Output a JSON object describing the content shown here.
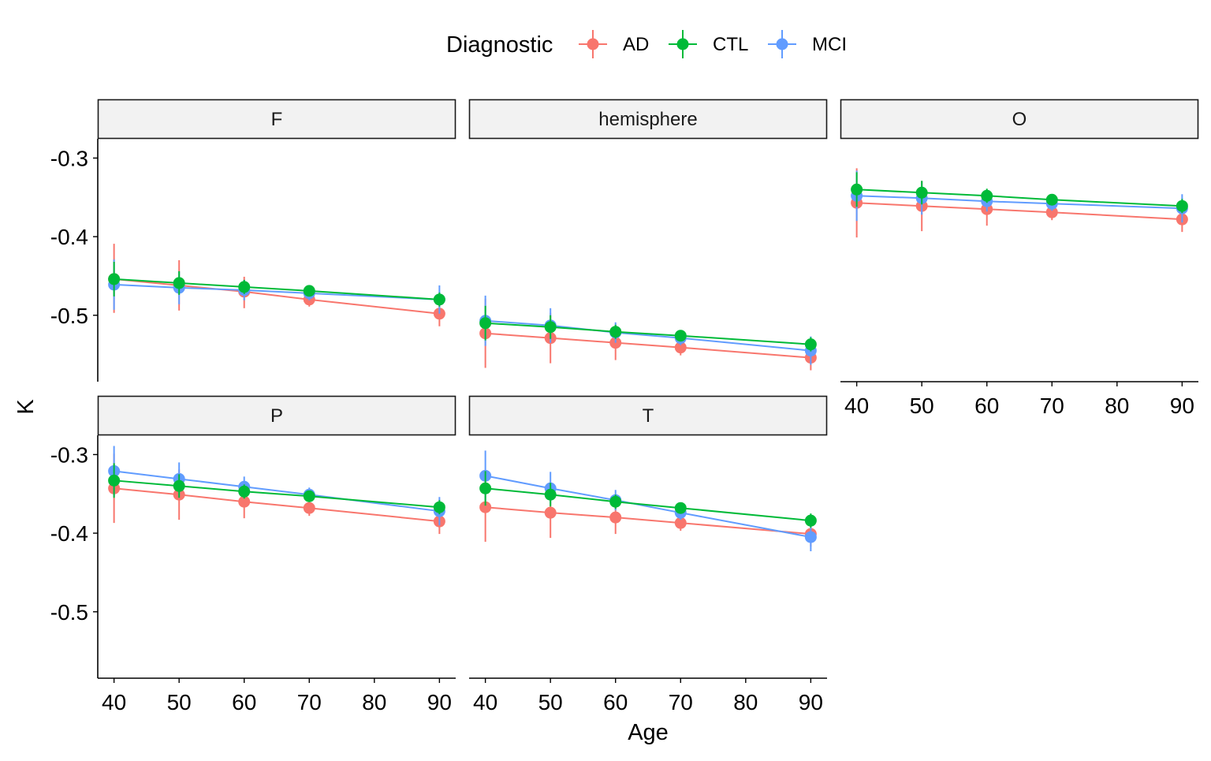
{
  "chart_data": {
    "type": "line",
    "xlabel": "Age",
    "ylabel": "K",
    "xlim": [
      37.5,
      92.5
    ],
    "ylim": [
      -0.5845,
      -0.2755
    ],
    "x_ticks": [
      40,
      50,
      60,
      70,
      80,
      90
    ],
    "y_ticks": [
      -0.3,
      -0.4,
      -0.5
    ],
    "y_tick_labels": [
      "-0.3",
      "-0.4",
      "-0.5"
    ],
    "x": [
      40,
      50,
      60,
      70,
      90
    ],
    "legend": {
      "title": "Diagnostic",
      "position": "top",
      "entries": [
        "AD",
        "CTL",
        "MCI"
      ]
    },
    "colors": {
      "AD": "#F8766D",
      "CTL": "#00BA38",
      "MCI": "#619CFF"
    },
    "error_bars": true,
    "grid": false,
    "panels": [
      {
        "label": "F",
        "series": [
          {
            "name": "AD",
            "values": [
              -0.454,
              -0.462,
              -0.47,
              -0.48,
              -0.498
            ],
            "lower": [
              -0.497,
              -0.494,
              -0.491,
              -0.489,
              -0.514
            ],
            "upper": [
              -0.409,
              -0.43,
              -0.451,
              -0.47,
              -0.482
            ]
          },
          {
            "name": "CTL",
            "values": [
              -0.454,
              -0.459,
              -0.464,
              -0.469,
              -0.48
            ],
            "lower": [
              -0.476,
              -0.474,
              -0.473,
              -0.475,
              -0.489
            ],
            "upper": [
              -0.432,
              -0.444,
              -0.455,
              -0.463,
              -0.471
            ]
          },
          {
            "name": "MCI",
            "values": [
              -0.461,
              -0.465,
              -0.468,
              -0.472,
              -0.48
            ],
            "lower": [
              -0.493,
              -0.486,
              -0.481,
              -0.481,
              -0.498
            ],
            "upper": [
              -0.429,
              -0.444,
              -0.455,
              -0.463,
              -0.462
            ]
          }
        ]
      },
      {
        "label": "hemisphere",
        "series": [
          {
            "name": "AD",
            "values": [
              -0.523,
              -0.529,
              -0.535,
              -0.541,
              -0.554
            ],
            "lower": [
              -0.567,
              -0.561,
              -0.557,
              -0.551,
              -0.57
            ],
            "upper": [
              -0.479,
              -0.497,
              -0.513,
              -0.531,
              -0.538
            ]
          },
          {
            "name": "CTL",
            "values": [
              -0.51,
              -0.515,
              -0.521,
              -0.526,
              -0.537
            ],
            "lower": [
              -0.532,
              -0.53,
              -0.53,
              -0.532,
              -0.546
            ],
            "upper": [
              -0.488,
              -0.5,
              -0.512,
              -0.52,
              -0.528
            ]
          },
          {
            "name": "MCI",
            "values": [
              -0.507,
              -0.513,
              -0.522,
              -0.529,
              -0.545
            ],
            "lower": [
              -0.539,
              -0.535,
              -0.535,
              -0.538,
              -0.563
            ],
            "upper": [
              -0.475,
              -0.491,
              -0.509,
              -0.52,
              -0.527
            ]
          }
        ]
      },
      {
        "label": "O",
        "series": [
          {
            "name": "AD",
            "values": [
              -0.357,
              -0.361,
              -0.365,
              -0.369,
              -0.378
            ],
            "lower": [
              -0.401,
              -0.393,
              -0.386,
              -0.379,
              -0.394
            ],
            "upper": [
              -0.313,
              -0.329,
              -0.344,
              -0.359,
              -0.362
            ]
          },
          {
            "name": "CTL",
            "values": [
              -0.34,
              -0.344,
              -0.348,
              -0.353,
              -0.361
            ],
            "lower": [
              -0.362,
              -0.359,
              -0.357,
              -0.359,
              -0.37
            ],
            "upper": [
              -0.318,
              -0.329,
              -0.339,
              -0.347,
              -0.352
            ]
          },
          {
            "name": "MCI",
            "values": [
              -0.348,
              -0.351,
              -0.355,
              -0.358,
              -0.364
            ],
            "lower": [
              -0.38,
              -0.372,
              -0.368,
              -0.367,
              -0.382
            ],
            "upper": [
              -0.316,
              -0.33,
              -0.342,
              -0.349,
              -0.346
            ]
          }
        ]
      },
      {
        "label": "P",
        "series": [
          {
            "name": "AD",
            "values": [
              -0.343,
              -0.351,
              -0.36,
              -0.368,
              -0.385
            ],
            "lower": [
              -0.387,
              -0.383,
              -0.381,
              -0.378,
              -0.401
            ],
            "upper": [
              -0.299,
              -0.319,
              -0.339,
              -0.358,
              -0.369
            ]
          },
          {
            "name": "CTL",
            "values": [
              -0.333,
              -0.34,
              -0.347,
              -0.353,
              -0.367
            ],
            "lower": [
              -0.355,
              -0.355,
              -0.356,
              -0.359,
              -0.376
            ],
            "upper": [
              -0.311,
              -0.325,
              -0.338,
              -0.347,
              -0.358
            ]
          },
          {
            "name": "MCI",
            "values": [
              -0.321,
              -0.331,
              -0.341,
              -0.351,
              -0.372
            ],
            "lower": [
              -0.353,
              -0.352,
              -0.354,
              -0.36,
              -0.39
            ],
            "upper": [
              -0.289,
              -0.31,
              -0.328,
              -0.342,
              -0.354
            ]
          }
        ]
      },
      {
        "label": "T",
        "series": [
          {
            "name": "AD",
            "values": [
              -0.367,
              -0.374,
              -0.38,
              -0.387,
              -0.401
            ],
            "lower": [
              -0.411,
              -0.406,
              -0.401,
              -0.397,
              -0.417
            ],
            "upper": [
              -0.323,
              -0.342,
              -0.359,
              -0.377,
              -0.385
            ]
          },
          {
            "name": "CTL",
            "values": [
              -0.343,
              -0.351,
              -0.36,
              -0.368,
              -0.384
            ],
            "lower": [
              -0.365,
              -0.366,
              -0.369,
              -0.374,
              -0.393
            ],
            "upper": [
              -0.321,
              -0.336,
              -0.351,
              -0.362,
              -0.375
            ]
          },
          {
            "name": "MCI",
            "values": [
              -0.327,
              -0.343,
              -0.358,
              -0.374,
              -0.405
            ],
            "lower": [
              -0.359,
              -0.364,
              -0.371,
              -0.383,
              -0.423
            ],
            "upper": [
              -0.295,
              -0.322,
              -0.345,
              -0.365,
              -0.387
            ]
          }
        ]
      }
    ]
  }
}
